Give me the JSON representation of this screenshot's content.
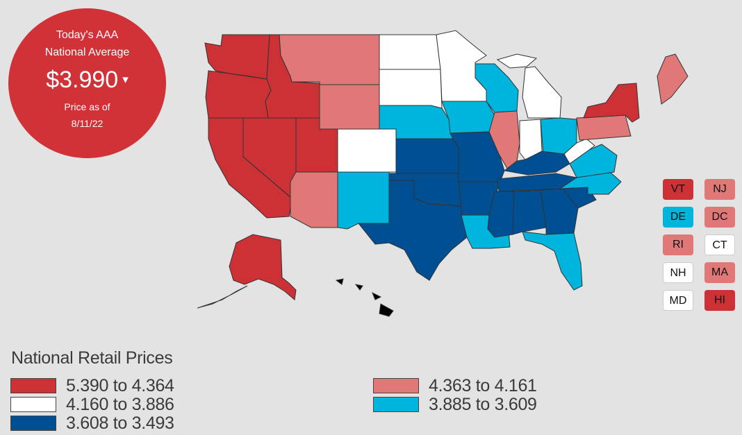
{
  "badge": {
    "line1": "Today's AAA",
    "line2": "National Average",
    "price": "$3.990",
    "caret": "▾",
    "asof_label": "Price as of",
    "asof_date": "8/11/22"
  },
  "colors": {
    "tier1": "#cc3136",
    "tier2": "#e07878",
    "tier3": "#ffffff",
    "tier4": "#00b5dd",
    "tier5": "#004f93"
  },
  "small_states": [
    {
      "abbr": "VT",
      "tier": "tier1"
    },
    {
      "abbr": "NJ",
      "tier": "tier2"
    },
    {
      "abbr": "DE",
      "tier": "tier4"
    },
    {
      "abbr": "DC",
      "tier": "tier2"
    },
    {
      "abbr": "RI",
      "tier": "tier2"
    },
    {
      "abbr": "CT",
      "tier": "tier3"
    },
    {
      "abbr": "NH",
      "tier": "tier3"
    },
    {
      "abbr": "MA",
      "tier": "tier2"
    },
    {
      "abbr": "MD",
      "tier": "tier3"
    },
    {
      "abbr": "HI",
      "tier": "tier1"
    }
  ],
  "legend": {
    "title": "National Retail Prices",
    "items": [
      {
        "label": "5.390 to 4.364",
        "tier": "tier1"
      },
      {
        "label": "4.160 to 3.886",
        "tier": "tier3"
      },
      {
        "label": "3.608 to 3.493",
        "tier": "tier5"
      },
      {
        "label": "4.363 to 4.161",
        "tier": "tier2"
      },
      {
        "label": "3.885 to 3.609",
        "tier": "tier4"
      }
    ]
  },
  "states": [
    {
      "abbr": "WA",
      "tier": "tier1"
    },
    {
      "abbr": "OR",
      "tier": "tier1"
    },
    {
      "abbr": "CA",
      "tier": "tier1"
    },
    {
      "abbr": "NV",
      "tier": "tier1"
    },
    {
      "abbr": "ID",
      "tier": "tier1"
    },
    {
      "abbr": "UT",
      "tier": "tier1"
    },
    {
      "abbr": "MT",
      "tier": "tier2"
    },
    {
      "abbr": "WY",
      "tier": "tier2"
    },
    {
      "abbr": "AZ",
      "tier": "tier2"
    },
    {
      "abbr": "CO",
      "tier": "tier3"
    },
    {
      "abbr": "NM",
      "tier": "tier4"
    },
    {
      "abbr": "ND",
      "tier": "tier3"
    },
    {
      "abbr": "SD",
      "tier": "tier3"
    },
    {
      "abbr": "NE",
      "tier": "tier4"
    },
    {
      "abbr": "KS",
      "tier": "tier5"
    },
    {
      "abbr": "OK",
      "tier": "tier5"
    },
    {
      "abbr": "TX",
      "tier": "tier5"
    },
    {
      "abbr": "MN",
      "tier": "tier3"
    },
    {
      "abbr": "IA",
      "tier": "tier4"
    },
    {
      "abbr": "MO",
      "tier": "tier5"
    },
    {
      "abbr": "AR",
      "tier": "tier5"
    },
    {
      "abbr": "LA",
      "tier": "tier4"
    },
    {
      "abbr": "WI",
      "tier": "tier4"
    },
    {
      "abbr": "IL",
      "tier": "tier2"
    },
    {
      "abbr": "MI",
      "tier": "tier3"
    },
    {
      "abbr": "IN",
      "tier": "tier3"
    },
    {
      "abbr": "OH",
      "tier": "tier4"
    },
    {
      "abbr": "KY",
      "tier": "tier5"
    },
    {
      "abbr": "TN",
      "tier": "tier5"
    },
    {
      "abbr": "MS",
      "tier": "tier5"
    },
    {
      "abbr": "AL",
      "tier": "tier5"
    },
    {
      "abbr": "GA",
      "tier": "tier5"
    },
    {
      "abbr": "FL",
      "tier": "tier4"
    },
    {
      "abbr": "SC",
      "tier": "tier5"
    },
    {
      "abbr": "NC",
      "tier": "tier4"
    },
    {
      "abbr": "VA",
      "tier": "tier4"
    },
    {
      "abbr": "WV",
      "tier": "tier3"
    },
    {
      "abbr": "PA",
      "tier": "tier2"
    },
    {
      "abbr": "NY",
      "tier": "tier1"
    },
    {
      "abbr": "ME",
      "tier": "tier2"
    },
    {
      "abbr": "AK",
      "tier": "tier1"
    }
  ]
}
